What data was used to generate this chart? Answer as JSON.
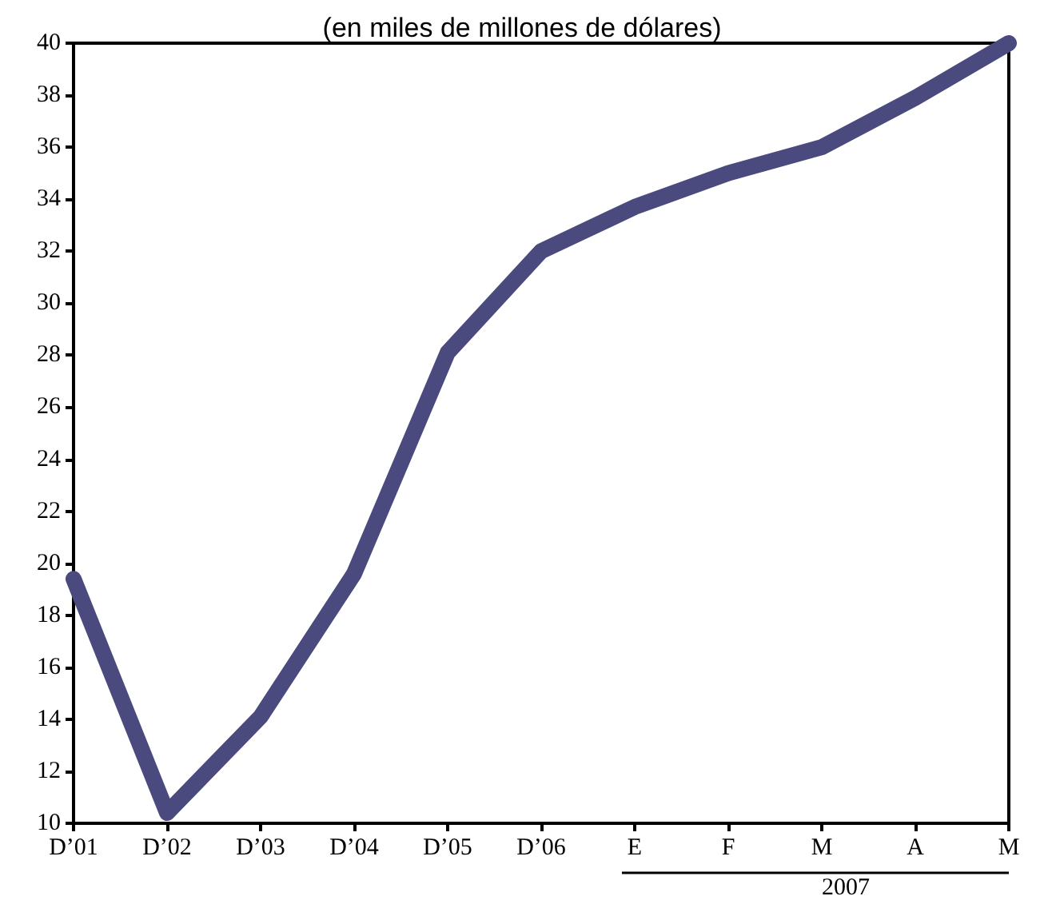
{
  "chart_data": {
    "type": "line",
    "title": "(en miles de millones de dólares)",
    "categories": [
      "D’01",
      "D’02",
      "D’03",
      "D’04",
      "D’05",
      "D’06",
      "E",
      "F",
      "M",
      "A",
      "M"
    ],
    "series": [
      {
        "color": "#4a4a7e",
        "values": [
          19.4,
          10.4,
          14.1,
          19.6,
          28.1,
          32.0,
          33.7,
          35.0,
          36.0,
          37.9,
          40.0
        ]
      }
    ],
    "ylim": [
      10,
      40
    ],
    "yticks": [
      10,
      12,
      14,
      16,
      18,
      20,
      22,
      24,
      26,
      28,
      30,
      32,
      34,
      36,
      38,
      40
    ],
    "grid": false,
    "line_style": "solid",
    "annotations": [
      "2007"
    ]
  }
}
